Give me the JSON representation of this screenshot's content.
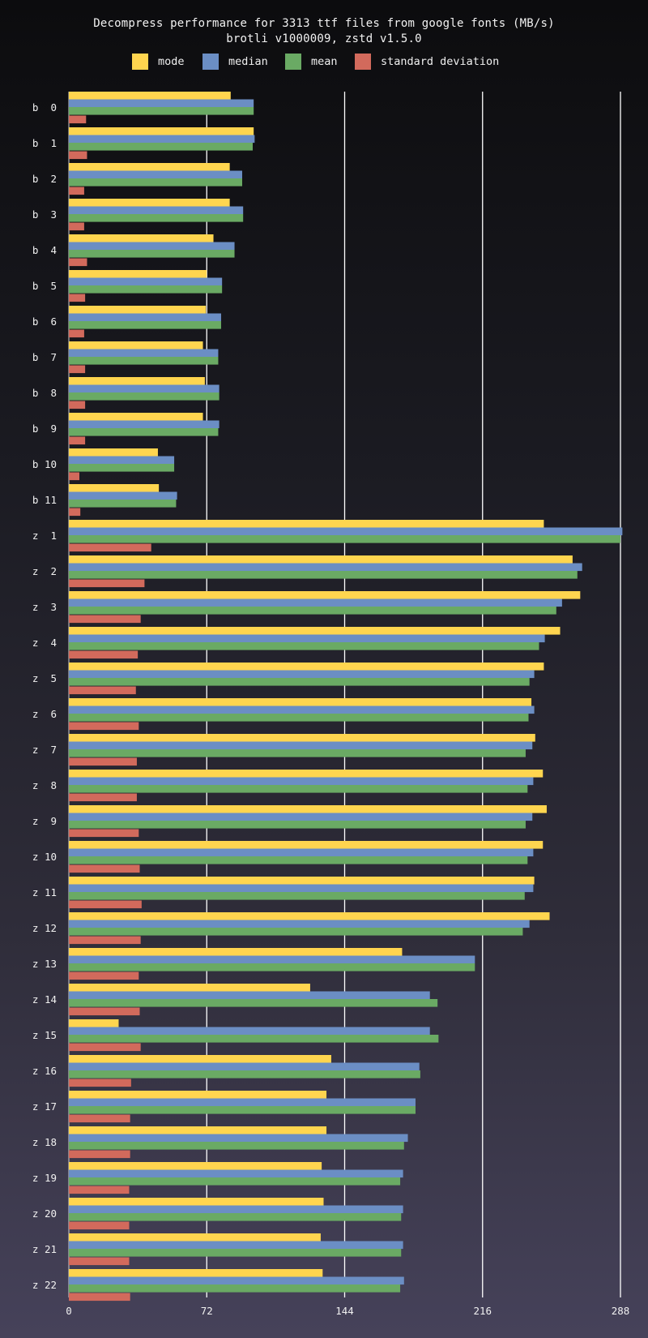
{
  "chart_data": {
    "type": "bar",
    "orientation": "horizontal",
    "title": "Decompress performance for 3313 ttf files from google fonts (MB/s)",
    "subtitle": "brotli v1000009, zstd v1.5.0",
    "xlabel": "",
    "ylabel": "",
    "xlim": [
      0,
      288
    ],
    "xticks": [
      0,
      72,
      144,
      216,
      288
    ],
    "grid": true,
    "legend_position": "top",
    "categories": [
      "b  0",
      "b  1",
      "b  2",
      "b  3",
      "b  4",
      "b  5",
      "b  6",
      "b  7",
      "b  8",
      "b  9",
      "b 10",
      "b 11",
      "z  1",
      "z  2",
      "z  3",
      "z  4",
      "z  5",
      "z  6",
      "z  7",
      "z  8",
      "z  9",
      "z 10",
      "z 11",
      "z 12",
      "z 13",
      "z 14",
      "z 15",
      "z 16",
      "z 17",
      "z 18",
      "z 19",
      "z 20",
      "z 21",
      "z 22"
    ],
    "series": [
      {
        "name": "mode",
        "color": "#ffd54f",
        "values": [
          84.5,
          96.5,
          84,
          84,
          75.5,
          72,
          71.5,
          70,
          71,
          70,
          46.5,
          47,
          248,
          263,
          267,
          256.5,
          248,
          241.5,
          243.5,
          247.5,
          249.5,
          247.5,
          243,
          251,
          174,
          126,
          26,
          137,
          134.5,
          134.5,
          132,
          133,
          131.5,
          132.5
        ]
      },
      {
        "name": "median",
        "color": "#6b8ec4",
        "values": [
          96.5,
          97,
          90.5,
          91,
          86.5,
          80,
          79.5,
          78,
          78.5,
          78.5,
          55,
          56.5,
          289,
          268,
          257.5,
          248.5,
          243,
          243,
          242,
          242.5,
          242,
          242.5,
          242.5,
          240.5,
          212,
          188.5,
          188.5,
          183,
          181,
          177,
          174.5,
          174.5,
          174.5,
          175
        ]
      },
      {
        "name": "mean",
        "color": "#6aaa64",
        "values": [
          96.5,
          96,
          90.5,
          91,
          86.5,
          80,
          79.5,
          78,
          78.5,
          78,
          55,
          56,
          288,
          265.5,
          254.5,
          245.5,
          240.5,
          240,
          238.5,
          239.5,
          238.5,
          239.5,
          238,
          237,
          212,
          192.5,
          193,
          183.5,
          181,
          175,
          173,
          173.5,
          173.5,
          173
        ]
      },
      {
        "name": "standard deviation",
        "color": "#d26a5c",
        "values": [
          9,
          9.5,
          8,
          8,
          9.5,
          8.5,
          8,
          8.5,
          8.5,
          8.5,
          5.5,
          6,
          43,
          39.5,
          37.5,
          36,
          35,
          36.5,
          35.5,
          35.5,
          36.5,
          37,
          38,
          37.5,
          36.5,
          37,
          37.5,
          32.5,
          32,
          32,
          31.5,
          31.5,
          31.5,
          32
        ]
      }
    ]
  }
}
